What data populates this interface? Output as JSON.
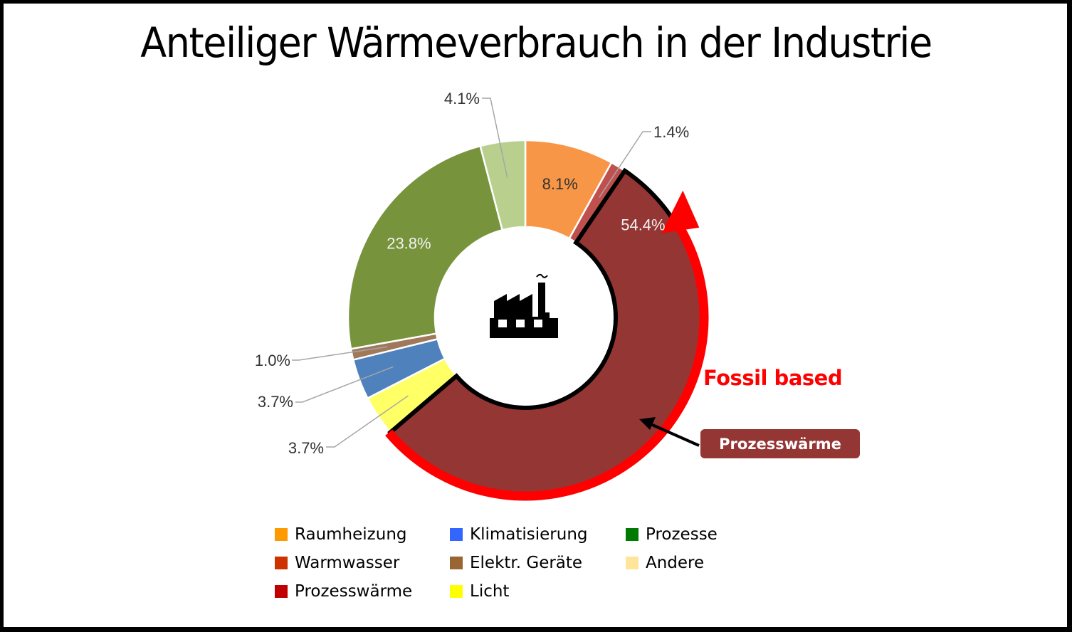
{
  "title": "Anteiliger Wärmeverbrauch in der Industrie",
  "chart_data": {
    "type": "pie",
    "subtype": "donut",
    "title": "Anteiliger Wärmeverbrauch in der Industrie",
    "start_angle_deg": 0,
    "direction": "clockwise",
    "slices": [
      {
        "name": "Raumheizung",
        "value": 8.1,
        "label": "8.1%",
        "color": "#f79646",
        "label_color": "#333333",
        "label_position": "inside"
      },
      {
        "name": "Warmwasser",
        "value": 1.4,
        "label": "1.4%",
        "color": "#c0504d",
        "label_color": "#333333",
        "label_position": "outside"
      },
      {
        "name": "Prozesswärme",
        "value": 54.4,
        "label": "54.4%",
        "color": "#943634",
        "label_color": "#f2f2f2",
        "label_position": "inside",
        "highlighted": true
      },
      {
        "name": "Licht",
        "value": 3.7,
        "label": "3.7%",
        "color": "#ffff66",
        "label_color": "#333333",
        "label_position": "outside"
      },
      {
        "name": "Klimatisierung",
        "value": 3.7,
        "label": "3.7%",
        "color": "#4f81bd",
        "label_color": "#333333",
        "label_position": "outside"
      },
      {
        "name": "Elektr. Geräte",
        "value": 1.0,
        "label": "1.0%",
        "color": "#a0785a",
        "label_color": "#333333",
        "label_position": "outside"
      },
      {
        "name": "Prozesse",
        "value": 23.8,
        "label": "23.8%",
        "color": "#77933c",
        "label_color": "#f2f2f2",
        "label_position": "inside"
      },
      {
        "name": "Andere",
        "value": 4.1,
        "label": "4.1%",
        "color": "#b9cf8e",
        "label_color": "#333333",
        "label_position": "outside"
      }
    ],
    "legend": {
      "placement": "bottom",
      "entries": [
        {
          "name": "Raumheizung",
          "color": "#ff9900"
        },
        {
          "name": "Klimatisierung",
          "color": "#3366ff"
        },
        {
          "name": "Prozesse",
          "color": "#007a00"
        },
        {
          "name": "Warmwasser",
          "color": "#cc3300"
        },
        {
          "name": "Elektr. Geräte",
          "color": "#996633"
        },
        {
          "name": "Andere",
          "color": "#ffe599"
        },
        {
          "name": "Prozesswärme",
          "color": "#c00000"
        },
        {
          "name": "Licht",
          "color": "#ffff00"
        }
      ]
    },
    "annotations": {
      "fossil_text": "Fossil based",
      "fossil_color": "#ff0000",
      "callout_text": "Prozesswärme",
      "callout_color": "#943634",
      "center_icon": "factory-icon"
    }
  }
}
